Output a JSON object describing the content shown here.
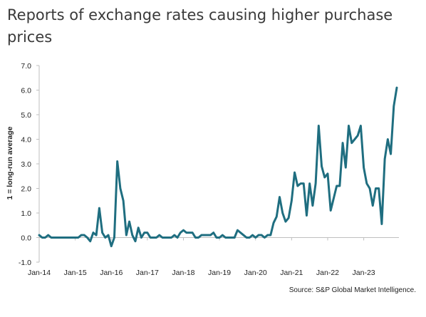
{
  "chart_data": {
    "type": "line",
    "title": "Reports of exchange rates causing higher purchase prices",
    "ylabel": "1 = long-run average",
    "xlabel": "",
    "ylim": [
      -1.0,
      7.0
    ],
    "yticks": [
      "7.0",
      "6.0",
      "5.0",
      "4.0",
      "3.0",
      "2.0",
      "1.0",
      "0.0",
      "-1.0"
    ],
    "ytick_values": [
      7,
      6,
      5,
      4,
      3,
      2,
      1,
      0,
      -1
    ],
    "xticks": [
      "Jan-14",
      "Jan-15",
      "Jan-16",
      "Jan-17",
      "Jan-18",
      "Jan-19",
      "Jan-20",
      "Jan-21",
      "Jan-22",
      "Jan-23"
    ],
    "x_start": "Jan-14",
    "grid": false,
    "line_color": "#1f6e80",
    "series": [
      {
        "values": [
          0.1,
          0.0,
          0.0,
          0.1,
          0.0,
          0.0,
          0.0,
          0.0,
          0.0,
          0.0,
          0.0,
          0.0,
          0.0,
          0.0,
          0.1,
          0.1,
          0.0,
          -0.15,
          0.2,
          0.1,
          1.2,
          0.2,
          0.0,
          0.1,
          -0.35,
          0.0,
          3.1,
          2.0,
          1.5,
          0.1,
          0.65,
          0.1,
          -0.15,
          0.4,
          0.0,
          0.2,
          0.2,
          0.0,
          0.0,
          0.0,
          0.1,
          0.0,
          0.0,
          0.0,
          0.0,
          0.1,
          0.0,
          0.2,
          0.3,
          0.2,
          0.2,
          0.2,
          0.0,
          0.0,
          0.1,
          0.1,
          0.1,
          0.1,
          0.2,
          0.0,
          0.0,
          0.1,
          0.0,
          0.0,
          0.0,
          0.0,
          0.3,
          0.2,
          0.1,
          0.0,
          0.0,
          0.1,
          0.0,
          0.1,
          0.1,
          0.0,
          0.1,
          0.1,
          0.6,
          0.85,
          1.65,
          1.0,
          0.65,
          0.8,
          1.5,
          2.65,
          2.1,
          2.2,
          2.2,
          0.9,
          2.2,
          1.3,
          2.2,
          4.55,
          2.9,
          2.45,
          2.6,
          1.1,
          1.6,
          2.1,
          2.1,
          3.85,
          2.85,
          4.55,
          3.85,
          4.0,
          4.15,
          4.55,
          2.85,
          2.2,
          2.0,
          1.3,
          2.0,
          2.0,
          0.55,
          3.2,
          4.0,
          3.4,
          5.35,
          6.1
        ]
      }
    ],
    "source": "Source: S&P Global Market Intelligence."
  }
}
